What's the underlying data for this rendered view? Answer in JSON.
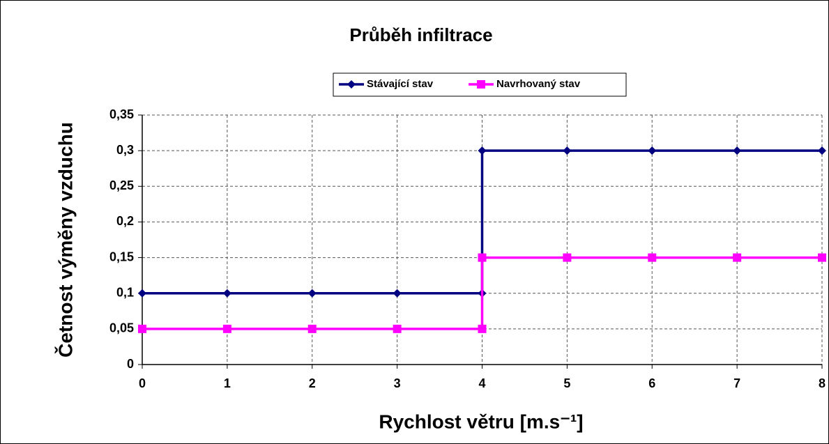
{
  "chart_data": {
    "type": "line",
    "title": "Průběh infiltrace",
    "x_label": "Rychlost větru [m.s⁻¹]",
    "y_label": "Četnost výměny vzduchu",
    "x": [
      0,
      1,
      2,
      3,
      4,
      4,
      5,
      6,
      7,
      8
    ],
    "series": [
      {
        "name": "Stávající stav",
        "color": "#000080",
        "marker": "diamond",
        "values": [
          0.1,
          0.1,
          0.1,
          0.1,
          0.1,
          0.3,
          0.3,
          0.3,
          0.3,
          0.3
        ]
      },
      {
        "name": "Navrhovaný stav",
        "color": "#ff00ff",
        "marker": "square",
        "values": [
          0.05,
          0.05,
          0.05,
          0.05,
          0.05,
          0.15,
          0.15,
          0.15,
          0.15,
          0.15
        ]
      }
    ],
    "xlim": [
      0,
      8
    ],
    "xticks": [
      0,
      1,
      2,
      3,
      4,
      5,
      6,
      7,
      8
    ],
    "ylim": [
      0,
      0.35
    ],
    "yticks": [
      0,
      {
        "value": 0.05,
        "label": "0,05"
      },
      {
        "value": 0.1,
        "label": "0,1"
      },
      {
        "value": 0.15,
        "label": "0,15"
      },
      {
        "value": 0.2,
        "label": "0,2"
      },
      {
        "value": 0.25,
        "label": "0,25"
      },
      {
        "value": 0.3,
        "label": "0,3"
      },
      {
        "value": 0.35,
        "label": "0,35"
      }
    ],
    "grid": true,
    "legend": "top"
  }
}
